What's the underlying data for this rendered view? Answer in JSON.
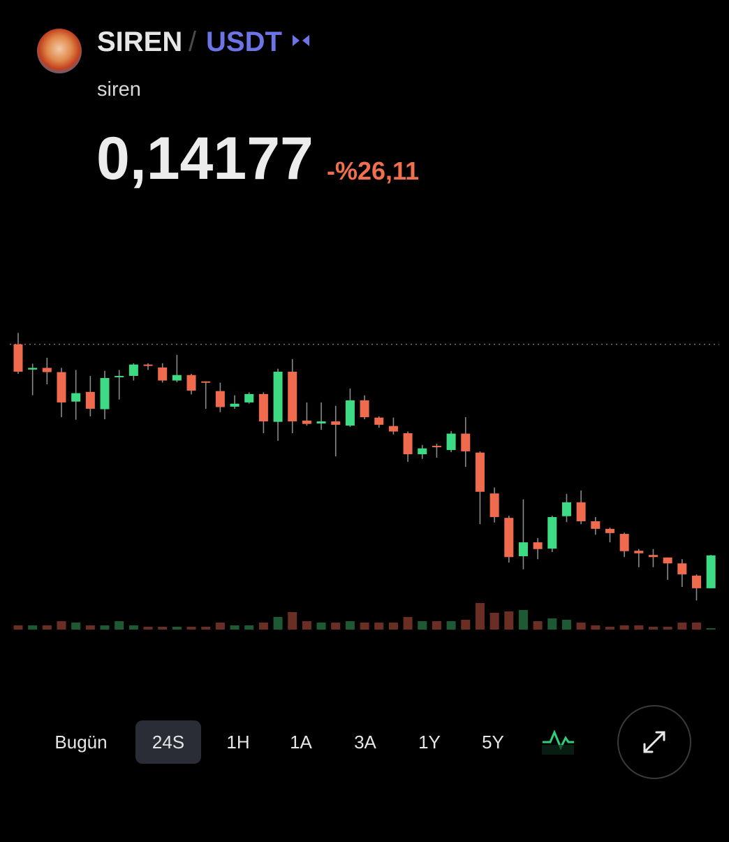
{
  "header": {
    "base": "SIREN",
    "separator": "/",
    "quote": "USDT",
    "name": "siren",
    "price": "0,14177",
    "change": "-%26,11"
  },
  "chart_data": {
    "type": "candlestick",
    "ylim": [
      0.129,
      0.196
    ],
    "reference_line": 0.1919,
    "up_color": "#3ddc84",
    "down_color": "#f06a4e",
    "volume_up_color": "#1d5a33",
    "volume_down_color": "#6a2e24",
    "open": [
      0.1919,
      0.1859,
      0.1863,
      0.1853,
      0.1783,
      0.1806,
      0.1765,
      0.1841,
      0.1844,
      0.1871,
      0.1864,
      0.1833,
      0.1846,
      0.1831,
      0.1808,
      0.1771,
      0.1781,
      0.1801,
      0.1735,
      0.1854,
      0.1738,
      0.1731,
      0.1736,
      0.1726,
      0.1786,
      0.1745,
      0.1725,
      0.1708,
      0.1658,
      0.1678,
      0.1668,
      0.1707,
      0.1662,
      0.1565,
      0.1507,
      0.1416,
      0.1449,
      0.1434,
      0.1511,
      0.1544,
      0.1499,
      0.1481,
      0.1469,
      0.1429,
      0.1419,
      0.1413,
      0.1399,
      0.137,
      0.134
    ],
    "high": [
      0.1946,
      0.1873,
      0.1887,
      0.1863,
      0.1858,
      0.1844,
      0.1856,
      0.1858,
      0.1874,
      0.1874,
      0.1874,
      0.1894,
      0.1849,
      0.1831,
      0.1828,
      0.1798,
      0.1805,
      0.1805,
      0.1861,
      0.1884,
      0.1781,
      0.1781,
      0.1773,
      0.1814,
      0.1798,
      0.1748,
      0.1745,
      0.1712,
      0.168,
      0.1683,
      0.1713,
      0.1746,
      0.1665,
      0.1579,
      0.1512,
      0.1551,
      0.1459,
      0.1512,
      0.1564,
      0.1572,
      0.1509,
      0.1484,
      0.1472,
      0.1433,
      0.1433,
      0.1413,
      0.1409,
      0.1373,
      0.1419
    ],
    "low": [
      0.1849,
      0.1798,
      0.1824,
      0.1746,
      0.174,
      0.1748,
      0.1741,
      0.1788,
      0.1833,
      0.1858,
      0.1828,
      0.1829,
      0.18,
      0.1766,
      0.1758,
      0.1766,
      0.1778,
      0.1708,
      0.169,
      0.1708,
      0.1726,
      0.1716,
      0.1653,
      0.1723,
      0.1741,
      0.1721,
      0.1705,
      0.164,
      0.1647,
      0.165,
      0.1663,
      0.1628,
      0.1492,
      0.1496,
      0.1401,
      0.1385,
      0.1409,
      0.1426,
      0.1497,
      0.1492,
      0.1467,
      0.1449,
      0.1414,
      0.139,
      0.139,
      0.136,
      0.1343,
      0.1311,
      0.134
    ],
    "close": [
      0.1854,
      0.1863,
      0.1853,
      0.1781,
      0.1803,
      0.1766,
      0.1839,
      0.1844,
      0.1871,
      0.1868,
      0.1833,
      0.1846,
      0.1809,
      0.1828,
      0.177,
      0.1778,
      0.1801,
      0.1736,
      0.1854,
      0.1736,
      0.173,
      0.1736,
      0.1728,
      0.1786,
      0.1746,
      0.1728,
      0.1712,
      0.1658,
      0.1672,
      0.1675,
      0.1707,
      0.1665,
      0.1569,
      0.1509,
      0.1414,
      0.1449,
      0.1433,
      0.1509,
      0.1544,
      0.1499,
      0.1481,
      0.1471,
      0.1428,
      0.1423,
      0.1414,
      0.1399,
      0.1373,
      0.134,
      0.1418
    ],
    "volume": [
      6,
      6,
      6,
      12,
      10,
      6,
      6,
      12,
      6,
      4,
      4,
      4,
      4,
      4,
      10,
      6,
      6,
      10,
      18,
      25,
      12,
      10,
      10,
      12,
      10,
      10,
      10,
      18,
      12,
      12,
      12,
      14,
      38,
      24,
      26,
      28,
      12,
      16,
      14,
      10,
      6,
      4,
      6,
      6,
      4,
      4,
      10,
      10,
      2
    ],
    "volume_ylim": [
      0,
      40
    ]
  },
  "ranges": {
    "options": [
      "Bugün",
      "24S",
      "1H",
      "1A",
      "3A",
      "1Y",
      "5Y"
    ],
    "selected": 1
  }
}
